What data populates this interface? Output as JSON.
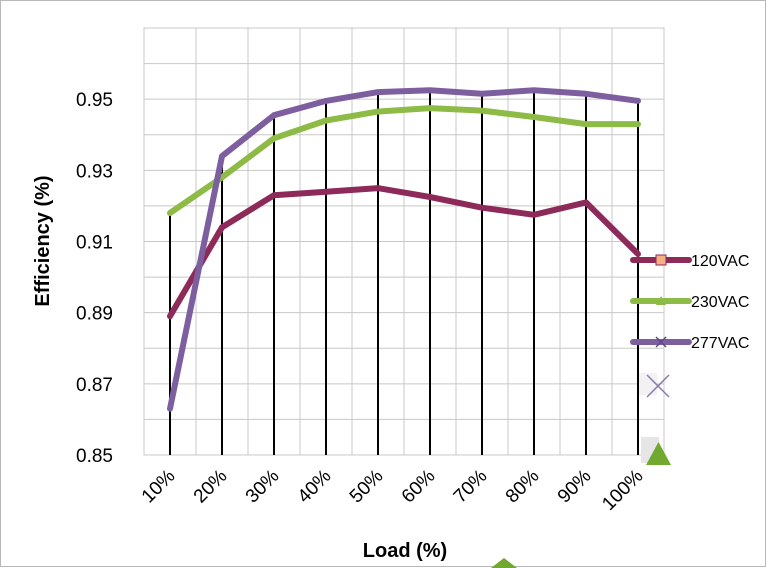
{
  "chart_data": {
    "type": "line",
    "title": "",
    "xlabel": "Load (%)",
    "ylabel": "Efficiency (%)",
    "categories": [
      "10%",
      "20%",
      "30%",
      "40%",
      "50%",
      "60%",
      "70%",
      "80%",
      "90%",
      "100%"
    ],
    "y_ticks": [
      "0.85",
      "0.87",
      "0.89",
      "0.91",
      "0.93",
      "0.95"
    ],
    "ylim": [
      0.85,
      0.97
    ],
    "grid": true,
    "legend_position": "right",
    "series": [
      {
        "name": "120VAC",
        "color": "#8e2a5a",
        "marker": "square",
        "marker_color": "#f4b183",
        "values": [
          0.889,
          0.914,
          0.923,
          0.924,
          0.925,
          0.9225,
          0.9195,
          0.9175,
          0.921,
          0.9065
        ]
      },
      {
        "name": "230VAC",
        "color": "#8dbb45",
        "marker": "triangle",
        "marker_color": "#8dbb45",
        "values": [
          0.918,
          0.928,
          0.939,
          0.944,
          0.9465,
          0.9475,
          0.9468,
          0.945,
          0.943,
          0.943
        ]
      },
      {
        "name": "277VAC",
        "color": "#7d5f9f",
        "marker": "cross",
        "marker_color": "#7d5f9f",
        "values": [
          0.863,
          0.934,
          0.9455,
          0.9495,
          0.952,
          0.9525,
          0.9515,
          0.9525,
          0.9515,
          0.9495
        ]
      }
    ]
  }
}
